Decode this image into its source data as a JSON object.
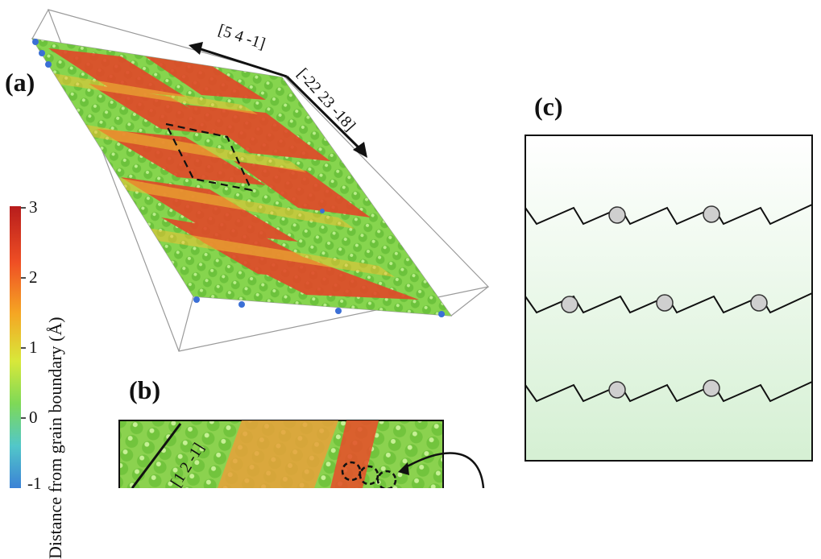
{
  "panels": {
    "a": "(a)",
    "b": "(b)",
    "c": "(c)"
  },
  "directions": {
    "arrow_a1": "[5 4 -1]",
    "arrow_a2": "[-22 23 -18]",
    "arrow_b": "[1 2 -1]"
  },
  "colorbar": {
    "label": "Distance from grain boundary (Å)",
    "ticks": [
      "3",
      "2",
      "1",
      "0",
      "-1"
    ],
    "colors": [
      "#b71c1c",
      "#ef4f24",
      "#f5a623",
      "#d8e83a",
      "#7ed957",
      "#52c7c9",
      "#3b82d6"
    ]
  },
  "colors": {
    "atom_green": "#7fd24a",
    "atom_red": "#e0442a",
    "atom_yellow": "#d7e63b",
    "panel_c_bg": "#e6f5e4",
    "solute": "#c8c8c8"
  }
}
